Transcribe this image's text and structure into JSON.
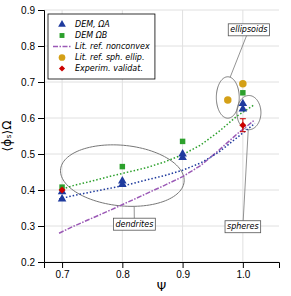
{
  "chart_data": {
    "type": "scatter",
    "xlabel": "Ψ",
    "ylabel": "⟨ϕₛ⟩Ω",
    "xlim": [
      0.67,
      1.06
    ],
    "ylim": [
      0.2,
      0.9
    ],
    "xticks": [
      0.7,
      0.8,
      0.9,
      {
        "value": 1.0,
        "label": "1.0"
      }
    ],
    "yticks": [
      0.2,
      0.3,
      0.4,
      0.5,
      0.6,
      0.7,
      0.8,
      0.9
    ],
    "grid": true,
    "legend": "upper left",
    "series": [
      {
        "name": "DEM, ΩA",
        "type": "scatter",
        "marker": "triangle",
        "color": "#1f3b9e",
        "x": [
          0.7,
          0.7,
          0.8,
          0.8,
          0.9,
          0.9,
          1.0,
          1.0
        ],
        "values": [
          0.375,
          0.395,
          0.415,
          0.425,
          0.49,
          0.5,
          0.625,
          0.64
        ]
      },
      {
        "name": "DEM ΩB",
        "type": "scatter",
        "marker": "square",
        "color": "#2ca02c",
        "x": [
          0.7,
          0.8,
          0.9,
          1.0
        ],
        "values": [
          0.408,
          0.465,
          0.535,
          0.67
        ]
      },
      {
        "name": "Lit. ref. nonconvex",
        "type": "line",
        "line_style": "dashdot",
        "color": "#9b59b6",
        "x": [
          0.695,
          0.72,
          0.75,
          0.78,
          0.81,
          0.84,
          0.87,
          0.9,
          0.93,
          0.96,
          0.99,
          1.02
        ],
        "values": [
          0.28,
          0.3,
          0.322,
          0.344,
          0.367,
          0.39,
          0.413,
          0.437,
          0.468,
          0.51,
          0.555,
          0.595
        ]
      },
      {
        "name": "Lit. ref. sph. ellip.",
        "type": "scatter",
        "marker": "circle",
        "color": "#d4a017",
        "x": [
          0.975,
          1.0
        ],
        "values": [
          0.65,
          0.695
        ]
      },
      {
        "name": "Experim. validat.",
        "type": "scatter",
        "marker": "diamond",
        "color": "#cc0000",
        "x": [
          0.7,
          1.0
        ],
        "values": [
          0.4,
          0.58
        ],
        "errors": [
          null,
          0.018
        ]
      },
      {
        "type": "line",
        "line_style": "dotted",
        "color": "#1f3b9e",
        "x": [
          0.695,
          0.72,
          0.75,
          0.78,
          0.81,
          0.84,
          0.87,
          0.9,
          0.93,
          0.96,
          0.99,
          1.02
        ],
        "values": [
          0.375,
          0.385,
          0.395,
          0.405,
          0.415,
          0.428,
          0.44,
          0.455,
          0.475,
          0.505,
          0.545,
          0.585
        ]
      },
      {
        "type": "line",
        "line_style": "dotted",
        "color": "#2ca02c",
        "x": [
          0.695,
          0.72,
          0.75,
          0.78,
          0.81,
          0.84,
          0.87,
          0.9,
          0.93,
          0.96,
          0.99,
          1.02
        ],
        "values": [
          0.4,
          0.413,
          0.425,
          0.438,
          0.45,
          0.462,
          0.478,
          0.498,
          0.525,
          0.562,
          0.605,
          0.638
        ]
      }
    ],
    "annotations": [
      {
        "text": "dendrites",
        "x": 0.82,
        "y": 0.305,
        "ellipse": {
          "cx": 0.8,
          "cy": 0.44,
          "width": 0.21,
          "height": 0.165,
          "angle": -20
        }
      },
      {
        "text": "ellipsoids",
        "x": 1.01,
        "y": 0.845,
        "ellipse": {
          "cx": 0.975,
          "cy": 0.657,
          "width": 0.038,
          "height": 0.115,
          "angle": 0
        }
      },
      {
        "text": "spheres",
        "x": 1.0,
        "y": 0.298,
        "ellipse": {
          "cx": 1.01,
          "cy": 0.615,
          "width": 0.04,
          "height": 0.095,
          "angle": 0
        }
      }
    ]
  }
}
